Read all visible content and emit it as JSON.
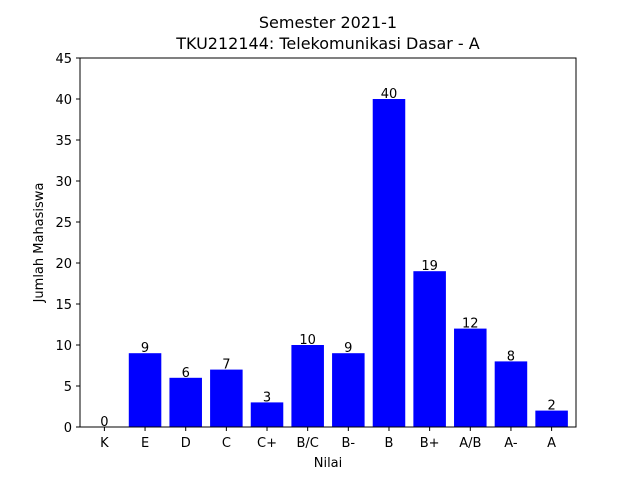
{
  "chart_data": {
    "type": "bar",
    "title": "Semester 2021-1",
    "subtitle": "TKU212144: Telekomunikasi Dasar - A",
    "xlabel": "Nilai",
    "ylabel": "Jumlah Mahasiswa",
    "categories": [
      "K",
      "E",
      "D",
      "C",
      "C+",
      "B/C",
      "B-",
      "B",
      "B+",
      "A/B",
      "A-",
      "A"
    ],
    "values": [
      0,
      9,
      6,
      7,
      3,
      10,
      9,
      40,
      19,
      12,
      8,
      2
    ],
    "ylim": [
      0,
      45
    ],
    "yticks": [
      0,
      5,
      10,
      15,
      20,
      25,
      30,
      35,
      40,
      45
    ],
    "bar_color": "#0000ff",
    "grid": false
  }
}
